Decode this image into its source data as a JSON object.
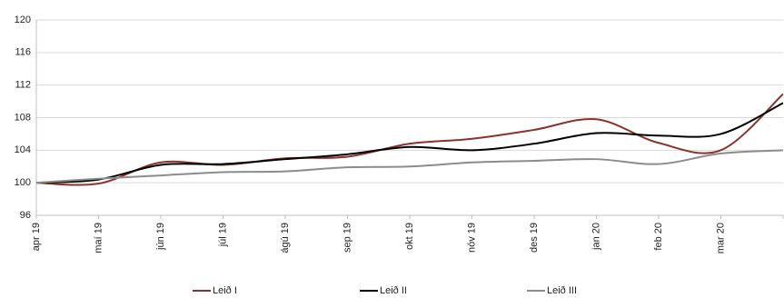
{
  "chart_data": {
    "type": "line",
    "categories": [
      "apr 19",
      "maí 19",
      "jún 19",
      "júl 19",
      "ágú 19",
      "sep 19",
      "okt 19",
      "nóv 19",
      "des 19",
      "jan 20",
      "feb 20",
      "mar 20",
      null
    ],
    "series": [
      {
        "name": "Leið I",
        "color": "#8b322c",
        "values": [
          100,
          99.9,
          102.5,
          102.2,
          103.0,
          103.2,
          104.8,
          105.4,
          106.5,
          107.8,
          104.9,
          104.0,
          110.9
        ]
      },
      {
        "name": "Leið II",
        "color": "#000000",
        "values": [
          100,
          100.4,
          102.2,
          102.3,
          102.9,
          103.5,
          104.4,
          104.0,
          104.8,
          106.1,
          105.8,
          106.0,
          109.8
        ]
      },
      {
        "name": "Leið III",
        "color": "#8c8c8c",
        "values": [
          100,
          100.5,
          100.9,
          101.3,
          101.4,
          101.9,
          102.0,
          102.5,
          102.7,
          102.9,
          102.3,
          103.6,
          104.0
        ]
      }
    ],
    "ylim": [
      96,
      120
    ],
    "yticks": [
      96,
      100,
      104,
      108,
      112,
      116,
      120
    ],
    "grid": true,
    "legend": "bottom"
  }
}
